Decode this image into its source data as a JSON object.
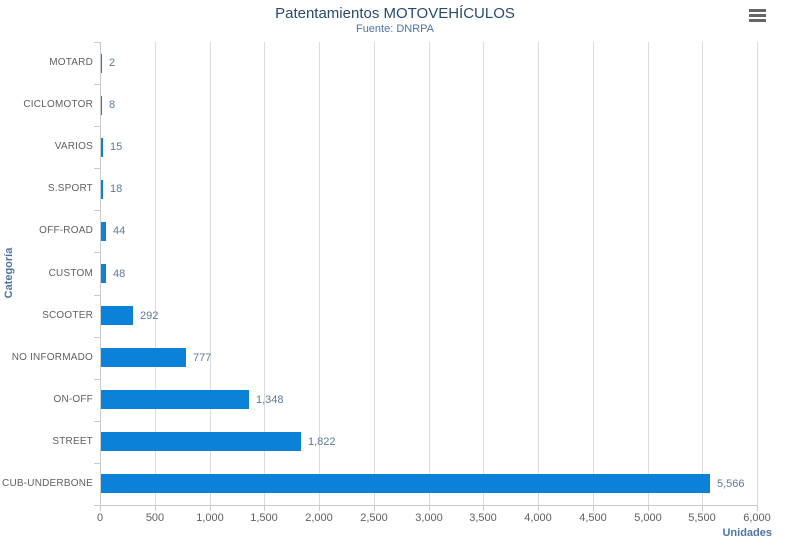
{
  "chart": {
    "title": "Patentamientos MOTOVEHÍCULOS",
    "subtitle": "Fuente: DNRPA",
    "x_axis_title": "Unidades",
    "y_axis_title": "Categoría"
  },
  "colors": {
    "background": "#ffffff",
    "bar": "#0b81d8",
    "title": "#274b6d",
    "subtitle": "#4d759e",
    "axis-title": "#4d759e",
    "axis-label": "#606060",
    "data-label": "#5d7a99",
    "gridline": "#dcdcdc",
    "axis-line": "#c8ccd0",
    "menu-icon": "#666666"
  },
  "chart_data": {
    "type": "bar",
    "orientation": "horizontal",
    "title": "Patentamientos MOTOVEHÍCULOS",
    "subtitle": "Fuente: DNRPA",
    "xlabel": "Unidades",
    "ylabel": "Categoría",
    "categories": [
      "MOTARD",
      "CICLOMOTOR",
      "VARIOS",
      "S.SPORT",
      "OFF-ROAD",
      "CUSTOM",
      "SCOOTER",
      "NO INFORMADO",
      "ON-OFF",
      "STREET",
      "CUB-UNDERBONE"
    ],
    "values": [
      2,
      8,
      15,
      18,
      44,
      48,
      292,
      777,
      1348,
      1822,
      5566
    ],
    "value_labels": [
      "2",
      "8",
      "15",
      "18",
      "44",
      "48",
      "292",
      "777",
      "1,348",
      "1,822",
      "5,566"
    ],
    "xlim": [
      0,
      6000
    ],
    "x_ticks": [
      0,
      500,
      1000,
      1500,
      2000,
      2500,
      3000,
      3500,
      4000,
      4500,
      5000,
      5500,
      6000
    ],
    "x_tick_labels": [
      "0",
      "500",
      "1,000",
      "1,500",
      "2,000",
      "2,500",
      "3,000",
      "3,500",
      "4,000",
      "4,500",
      "5,000",
      "5,500",
      "6,000"
    ],
    "grid": true,
    "legend": false
  }
}
